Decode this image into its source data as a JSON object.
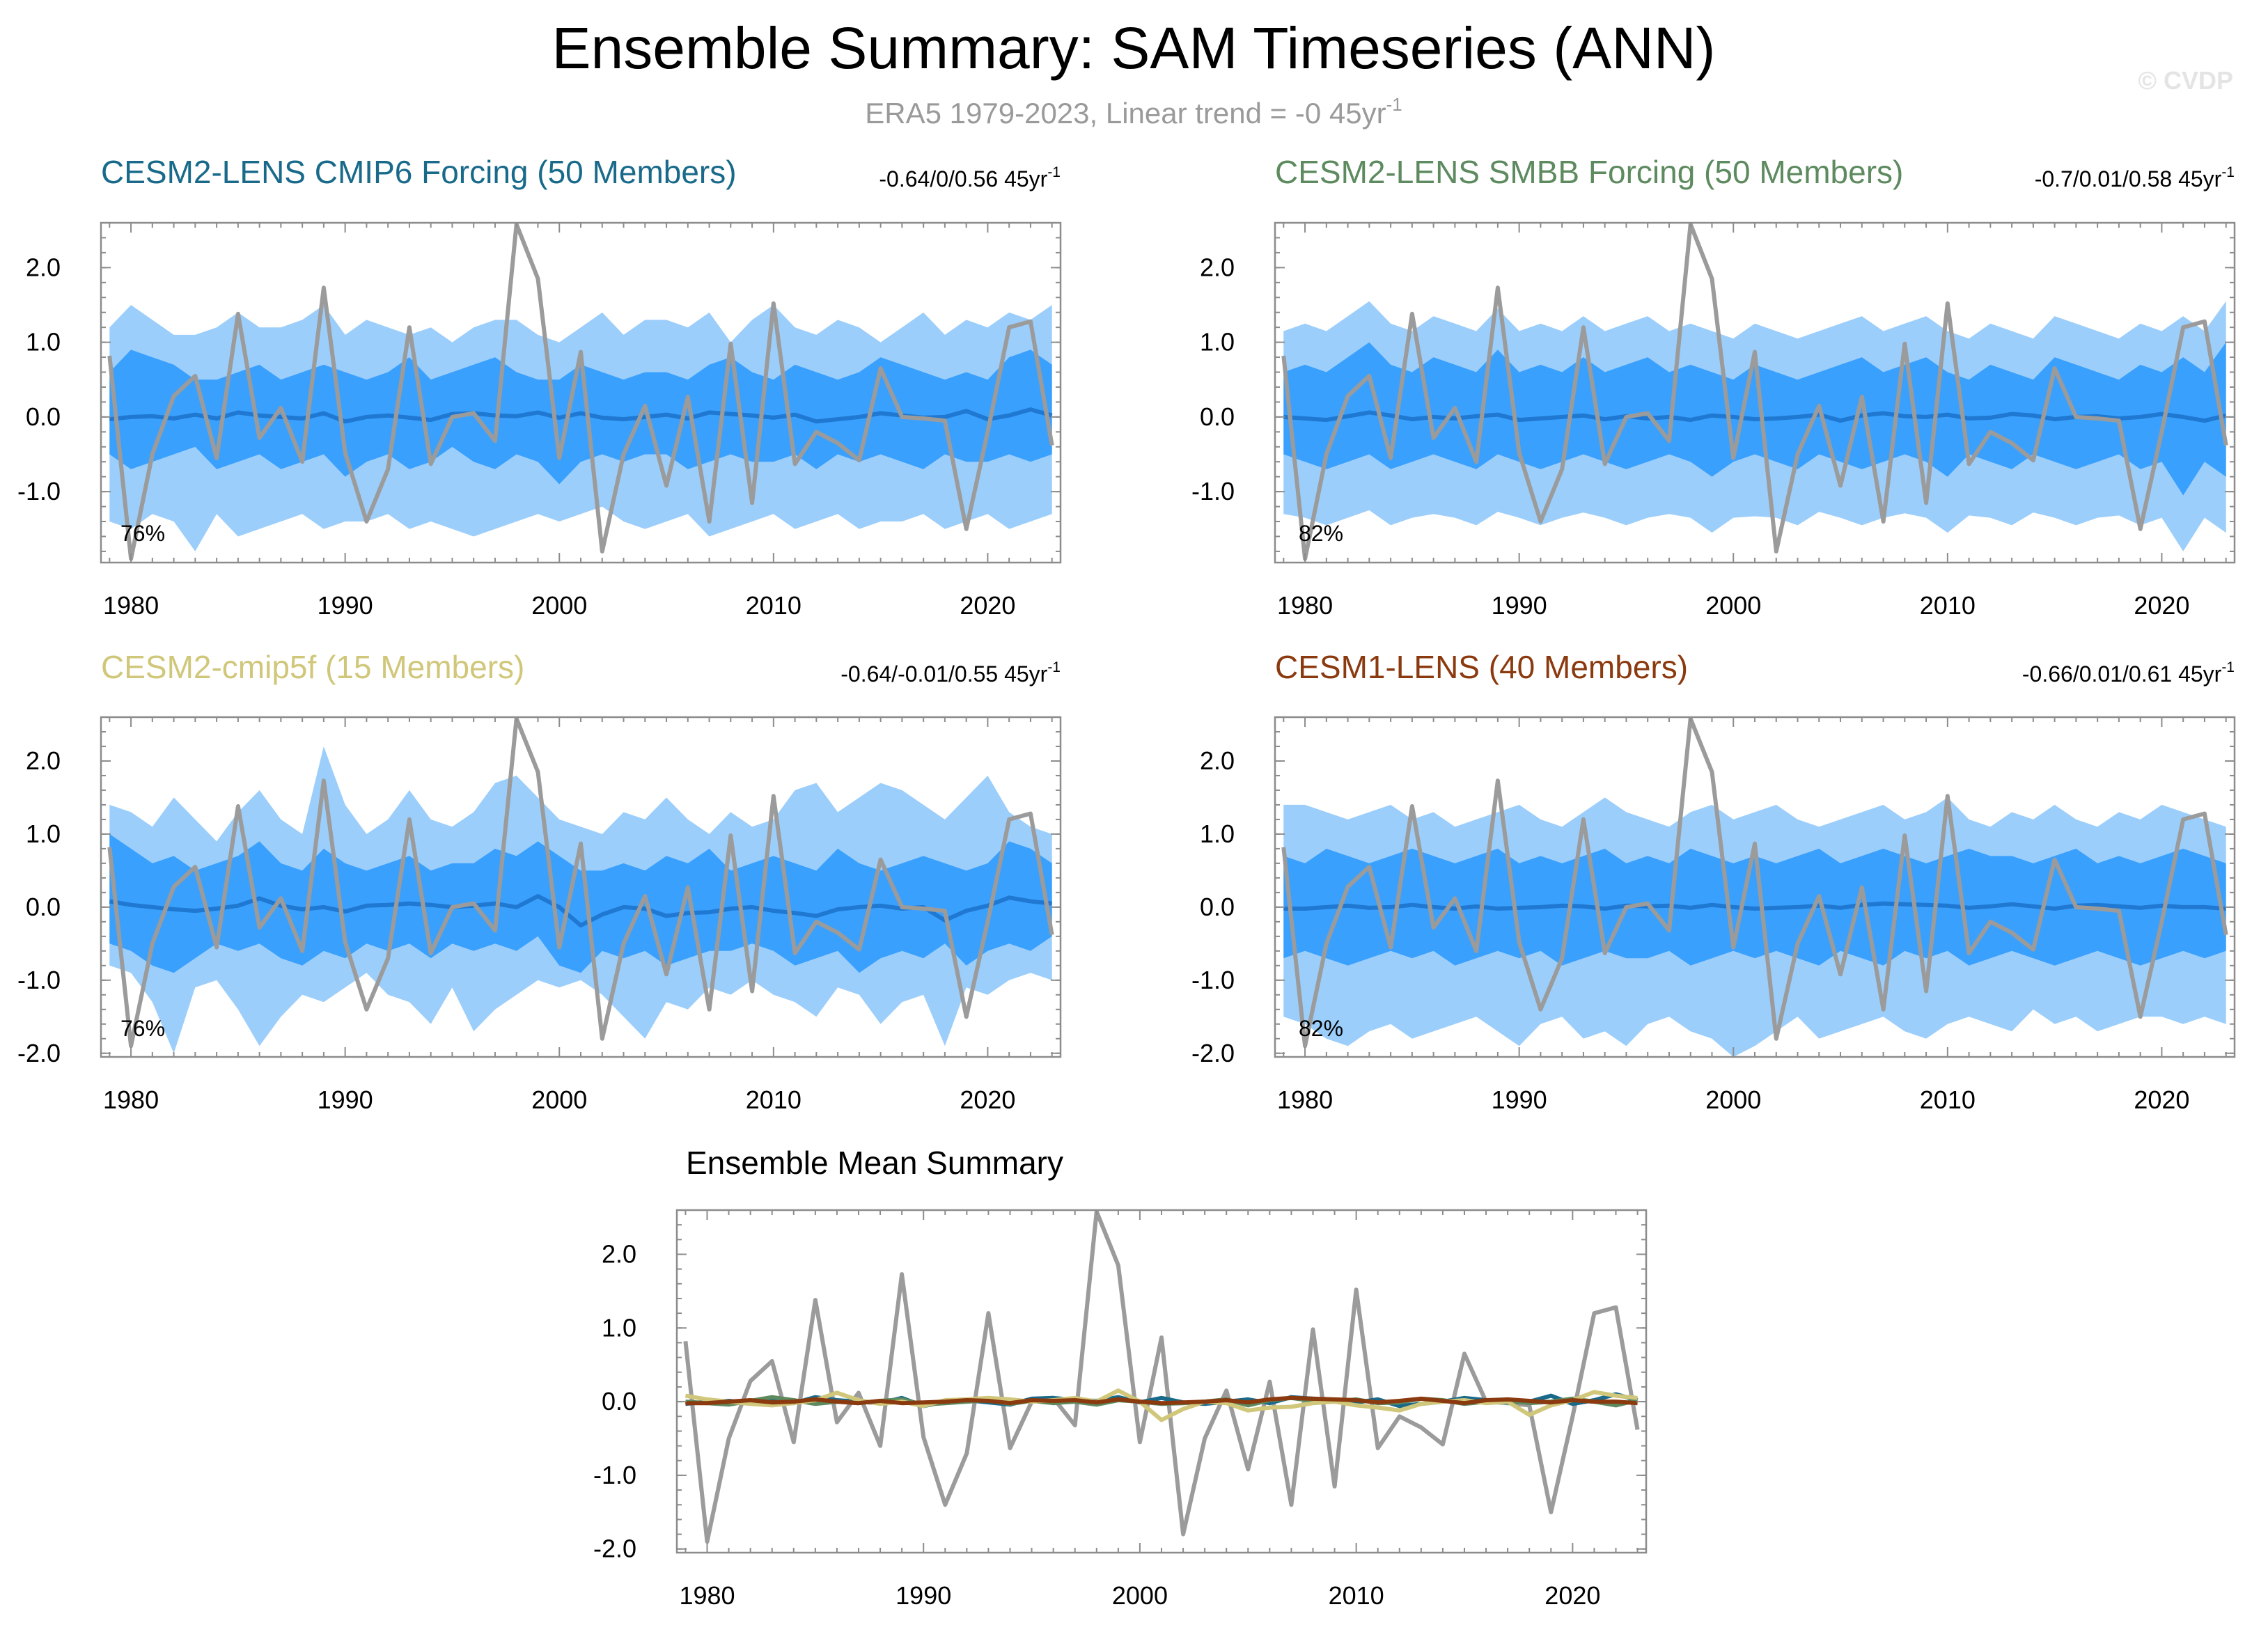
{
  "title": "Ensemble Summary: SAM Timeseries (ANN)",
  "subtitle_text": "ERA5 1979-2023, Linear trend = -0 45yr",
  "subtitle_sup": "-1",
  "watermark": "© CVDP",
  "colors": {
    "obs": "#9b9b9b",
    "outer_band": "#9ccefb",
    "inner_band": "#3aa0fd",
    "ens_mean": "#1f78d1"
  },
  "chart_data": [
    {
      "id": "p1",
      "type": "area",
      "title": "CESM2-LENS CMIP6 Forcing (50 Members)",
      "title_color": "#196a8a",
      "stats_text": "-0.64/0/0.56 45yr",
      "stats_sup": "-1",
      "pct_label": "76%",
      "xlim": [
        1978.6,
        2023.4
      ],
      "ylim": [
        -1.95,
        2.6
      ],
      "xticks": [
        1980,
        1990,
        2000,
        2010,
        2020
      ],
      "yticks": [
        2.0,
        1.0,
        0.0,
        -1.0
      ],
      "ytick_labels": [
        "2.0",
        "1.0",
        "0.0",
        "-1.0"
      ],
      "ensemble_mean": [
        -0.03,
        0.0,
        0.01,
        -0.02,
        0.03,
        -0.02,
        0.06,
        0.02,
        0.0,
        -0.02,
        0.05,
        -0.06,
        0.0,
        0.02,
        -0.01,
        -0.04,
        0.04,
        0.05,
        0.02,
        0.01,
        0.06,
        -0.01,
        0.05,
        -0.01,
        -0.03,
        0.0,
        0.03,
        -0.02,
        0.06,
        0.04,
        0.02,
        -0.01,
        0.03,
        -0.06,
        -0.03,
        0.0,
        0.05,
        0.02,
        -0.01,
        0.0,
        0.08,
        -0.03,
        0.02,
        0.1,
        0.02
      ],
      "inner_upper": [
        0.6,
        0.9,
        0.8,
        0.7,
        0.5,
        0.5,
        0.6,
        0.7,
        0.5,
        0.6,
        0.7,
        0.6,
        0.5,
        0.6,
        0.8,
        0.5,
        0.6,
        0.7,
        0.8,
        0.6,
        0.5,
        0.5,
        0.7,
        0.6,
        0.5,
        0.6,
        0.6,
        0.5,
        0.7,
        0.8,
        0.6,
        0.5,
        0.7,
        0.6,
        0.5,
        0.6,
        0.8,
        0.7,
        0.6,
        0.5,
        0.6,
        0.5,
        0.8,
        0.9,
        0.7
      ],
      "inner_lower": [
        -0.5,
        -0.7,
        -0.6,
        -0.5,
        -0.4,
        -0.7,
        -0.6,
        -0.5,
        -0.7,
        -0.6,
        -0.5,
        -0.8,
        -0.6,
        -0.5,
        -0.7,
        -0.6,
        -0.4,
        -0.6,
        -0.7,
        -0.5,
        -0.6,
        -0.9,
        -0.6,
        -0.5,
        -0.6,
        -0.5,
        -0.5,
        -0.7,
        -0.6,
        -0.5,
        -0.6,
        -0.6,
        -0.5,
        -0.7,
        -0.5,
        -0.6,
        -0.5,
        -0.6,
        -0.7,
        -0.5,
        -0.6,
        -0.6,
        -0.5,
        -0.6,
        -0.5
      ],
      "outer_upper": [
        1.2,
        1.5,
        1.3,
        1.1,
        1.1,
        1.2,
        1.4,
        1.2,
        1.2,
        1.3,
        1.5,
        1.1,
        1.3,
        1.2,
        1.1,
        1.2,
        1.0,
        1.2,
        1.3,
        1.3,
        1.1,
        1.0,
        1.2,
        1.4,
        1.1,
        1.3,
        1.3,
        1.2,
        1.4,
        1.0,
        1.3,
        1.5,
        1.2,
        1.1,
        1.3,
        1.2,
        1.0,
        1.2,
        1.4,
        1.1,
        1.3,
        1.2,
        1.4,
        1.3,
        1.5
      ],
      "outer_lower": [
        -1.4,
        -1.5,
        -1.3,
        -1.4,
        -1.8,
        -1.3,
        -1.6,
        -1.5,
        -1.4,
        -1.3,
        -1.5,
        -1.4,
        -1.4,
        -1.3,
        -1.5,
        -1.4,
        -1.5,
        -1.6,
        -1.5,
        -1.4,
        -1.3,
        -1.4,
        -1.3,
        -1.2,
        -1.4,
        -1.5,
        -1.4,
        -1.3,
        -1.6,
        -1.5,
        -1.4,
        -1.3,
        -1.5,
        -1.4,
        -1.3,
        -1.5,
        -1.4,
        -1.4,
        -1.3,
        -1.5,
        -1.4,
        -1.3,
        -1.5,
        -1.4,
        -1.3
      ]
    },
    {
      "id": "p2",
      "type": "area",
      "title": "CESM2-LENS SMBB Forcing (50 Members)",
      "title_color": "#5d8a5f",
      "stats_text": "-0.7/0.01/0.58 45yr",
      "stats_sup": "-1",
      "pct_label": "82%",
      "xlim": [
        1978.6,
        2023.4
      ],
      "ylim": [
        -1.95,
        2.6
      ],
      "xticks": [
        1980,
        1990,
        2000,
        2010,
        2020
      ],
      "yticks": [
        2.0,
        1.0,
        0.0,
        -1.0
      ],
      "ytick_labels": [
        "2.0",
        "1.0",
        "0.0",
        "-1.0"
      ],
      "ensemble_mean": [
        0.0,
        -0.02,
        -0.04,
        0.01,
        0.06,
        0.02,
        -0.03,
        0.0,
        -0.02,
        0.01,
        0.03,
        -0.04,
        -0.02,
        0.0,
        0.02,
        -0.03,
        0.01,
        -0.02,
        0.0,
        -0.04,
        0.02,
        0.0,
        -0.03,
        -0.02,
        0.0,
        0.03,
        -0.05,
        0.02,
        0.05,
        0.01,
        0.0,
        0.03,
        -0.02,
        -0.01,
        0.04,
        0.02,
        -0.03,
        0.0,
        0.01,
        -0.02,
        0.0,
        0.04,
        0.0,
        -0.05,
        0.02
      ],
      "inner_upper": [
        0.6,
        0.7,
        0.6,
        0.8,
        1.0,
        0.7,
        0.6,
        0.8,
        0.7,
        0.6,
        0.9,
        0.6,
        0.7,
        0.6,
        0.8,
        0.6,
        0.7,
        0.8,
        0.6,
        0.7,
        0.6,
        0.5,
        0.7,
        0.6,
        0.5,
        0.6,
        0.7,
        0.8,
        0.6,
        0.7,
        0.8,
        0.6,
        0.5,
        0.7,
        0.6,
        0.5,
        0.8,
        0.7,
        0.6,
        0.5,
        0.7,
        0.6,
        0.8,
        0.6,
        1.0
      ],
      "inner_lower": [
        -0.5,
        -0.6,
        -0.7,
        -0.6,
        -0.5,
        -0.7,
        -0.6,
        -0.5,
        -0.6,
        -0.7,
        -0.5,
        -0.6,
        -0.7,
        -0.6,
        -0.5,
        -0.6,
        -0.7,
        -0.6,
        -0.5,
        -0.6,
        -0.8,
        -0.6,
        -0.5,
        -0.6,
        -0.7,
        -0.5,
        -0.6,
        -0.7,
        -0.6,
        -0.5,
        -0.6,
        -0.8,
        -0.5,
        -0.6,
        -0.7,
        -0.5,
        -0.6,
        -0.7,
        -0.6,
        -0.5,
        -0.7,
        -0.6,
        -1.05,
        -0.6,
        -0.8
      ]
    },
    {
      "id": "p3",
      "type": "area",
      "title": "CESM2-cmip5f (15 Members)",
      "title_color": "#d0c77a",
      "stats_text": "-0.64/-0.01/0.55 45yr",
      "stats_sup": "-1",
      "pct_label": "76%",
      "xlim": [
        1978.6,
        2023.4
      ],
      "ylim": [
        -2.05,
        2.6
      ],
      "xticks": [
        1980,
        1990,
        2000,
        2010,
        2020
      ],
      "yticks": [
        2.0,
        1.0,
        0.0,
        -1.0,
        -2.0
      ],
      "ytick_labels": [
        "2.0",
        "1.0",
        "0.0",
        "-1.0",
        "-2.0"
      ],
      "ensemble_mean": [
        0.08,
        0.03,
        0.0,
        -0.03,
        -0.05,
        -0.02,
        0.02,
        0.12,
        0.02,
        -0.03,
        0.0,
        -0.06,
        0.02,
        0.03,
        0.05,
        0.03,
        0.0,
        0.02,
        0.05,
        0.0,
        0.15,
        0.0,
        -0.25,
        -0.1,
        0.0,
        -0.02,
        -0.12,
        -0.08,
        -0.07,
        -0.02,
        0.0,
        -0.05,
        -0.08,
        -0.12,
        -0.03,
        0.0,
        0.02,
        -0.02,
        0.0,
        -0.18,
        -0.05,
        0.02,
        0.13,
        0.08,
        0.05
      ],
      "inner_upper": [
        1.0,
        0.8,
        0.6,
        0.7,
        0.5,
        0.6,
        0.7,
        0.9,
        0.6,
        0.5,
        0.8,
        0.6,
        0.5,
        0.6,
        0.7,
        0.5,
        0.6,
        0.6,
        0.8,
        0.7,
        0.9,
        0.7,
        0.5,
        0.5,
        0.6,
        0.5,
        0.7,
        0.6,
        0.8,
        0.5,
        0.6,
        0.7,
        0.6,
        0.5,
        0.8,
        0.6,
        0.5,
        0.6,
        0.7,
        0.6,
        0.5,
        0.6,
        0.9,
        0.8,
        0.6
      ],
      "inner_lower": [
        -0.5,
        -0.6,
        -0.8,
        -0.9,
        -0.7,
        -0.5,
        -0.6,
        -0.5,
        -0.7,
        -0.8,
        -0.6,
        -0.7,
        -0.5,
        -0.6,
        -0.5,
        -0.7,
        -0.5,
        -0.6,
        -0.5,
        -0.6,
        -0.4,
        -0.8,
        -0.9,
        -0.6,
        -0.7,
        -0.6,
        -0.8,
        -0.7,
        -0.6,
        -0.6,
        -0.5,
        -0.6,
        -0.8,
        -0.7,
        -0.6,
        -0.9,
        -0.7,
        -0.6,
        -0.7,
        -0.5,
        -0.8,
        -0.6,
        -0.5,
        -0.6,
        -0.4
      ],
      "outer_upper": [
        1.4,
        1.3,
        1.1,
        1.5,
        1.2,
        0.9,
        1.3,
        1.6,
        1.2,
        1.0,
        2.2,
        1.4,
        1.0,
        1.2,
        1.6,
        1.2,
        1.1,
        1.3,
        1.7,
        1.8,
        1.5,
        1.2,
        1.1,
        1.0,
        1.3,
        1.2,
        1.5,
        1.2,
        1.0,
        1.3,
        1.1,
        1.2,
        1.6,
        1.7,
        1.3,
        1.5,
        1.7,
        1.6,
        1.4,
        1.2,
        1.5,
        1.8,
        1.3,
        1.1,
        1.0
      ],
      "outer_lower": [
        -0.8,
        -0.9,
        -1.3,
        -2.0,
        -1.1,
        -1.0,
        -1.4,
        -1.9,
        -1.5,
        -1.2,
        -1.3,
        -1.1,
        -0.9,
        -1.2,
        -1.3,
        -1.6,
        -1.1,
        -1.7,
        -1.4,
        -1.2,
        -1.0,
        -1.1,
        -1.0,
        -1.2,
        -1.5,
        -1.8,
        -1.3,
        -1.4,
        -1.1,
        -1.2,
        -1.0,
        -1.2,
        -1.3,
        -1.5,
        -1.1,
        -1.2,
        -1.6,
        -1.3,
        -1.2,
        -1.9,
        -1.1,
        -1.2,
        -1.0,
        -0.9,
        -1.0
      ]
    },
    {
      "id": "p4",
      "type": "area",
      "title": "CESM1-LENS (40 Members)",
      "title_color": "#8b3a0f",
      "stats_text": "-0.66/0.01/0.61 45yr",
      "stats_sup": "-1",
      "pct_label": "82%",
      "xlim": [
        1978.6,
        2023.4
      ],
      "ylim": [
        -2.05,
        2.6
      ],
      "xticks": [
        1980,
        1990,
        2000,
        2010,
        2020
      ],
      "yticks": [
        2.0,
        1.0,
        0.0,
        -1.0,
        -2.0
      ],
      "ytick_labels": [
        "2.0",
        "1.0",
        "0.0",
        "-1.0",
        "-2.0"
      ],
      "ensemble_mean": [
        -0.02,
        -0.02,
        0.0,
        0.02,
        -0.01,
        0.0,
        0.03,
        0.0,
        -0.02,
        0.01,
        -0.02,
        -0.01,
        0.0,
        0.02,
        0.01,
        -0.02,
        0.02,
        0.01,
        0.02,
        -0.01,
        0.03,
        0.0,
        -0.02,
        -0.01,
        0.0,
        0.02,
        -0.01,
        0.03,
        0.05,
        0.04,
        0.03,
        0.02,
        -0.01,
        0.01,
        0.04,
        0.01,
        -0.02,
        0.02,
        0.03,
        0.01,
        -0.01,
        0.02,
        0.0,
        0.0,
        -0.02
      ],
      "inner_upper": [
        0.7,
        0.6,
        0.8,
        0.7,
        0.6,
        0.7,
        0.8,
        0.7,
        0.6,
        0.7,
        0.8,
        0.6,
        0.7,
        0.6,
        0.7,
        0.8,
        0.6,
        0.7,
        0.6,
        0.8,
        0.7,
        0.6,
        0.7,
        0.6,
        0.7,
        0.8,
        0.6,
        0.7,
        0.8,
        0.7,
        0.6,
        0.7,
        0.8,
        0.7,
        0.7,
        0.6,
        0.7,
        0.8,
        0.6,
        0.7,
        0.6,
        0.7,
        0.8,
        0.7,
        0.6
      ],
      "inner_lower": [
        -0.7,
        -0.6,
        -0.7,
        -0.8,
        -0.7,
        -0.6,
        -0.7,
        -0.6,
        -0.8,
        -0.7,
        -0.6,
        -0.7,
        -0.6,
        -0.8,
        -0.7,
        -0.6,
        -0.7,
        -0.7,
        -0.6,
        -0.8,
        -0.7,
        -0.6,
        -0.7,
        -0.6,
        -0.7,
        -0.8,
        -0.6,
        -0.7,
        -0.8,
        -0.6,
        -0.7,
        -0.6,
        -0.8,
        -0.7,
        -0.6,
        -0.7,
        -0.8,
        -0.7,
        -0.6,
        -0.7,
        -0.8,
        -0.7,
        -0.6,
        -0.7,
        -0.6
      ],
      "outer_upper": [
        1.4,
        1.4,
        1.3,
        1.2,
        1.3,
        1.4,
        1.2,
        1.3,
        1.1,
        1.2,
        1.3,
        1.4,
        1.2,
        1.1,
        1.3,
        1.5,
        1.3,
        1.2,
        1.1,
        1.3,
        1.4,
        1.2,
        1.3,
        1.4,
        1.2,
        1.1,
        1.2,
        1.3,
        1.4,
        1.2,
        1.3,
        1.5,
        1.2,
        1.1,
        1.3,
        1.2,
        1.4,
        1.2,
        1.1,
        1.3,
        1.2,
        1.4,
        1.3,
        1.2,
        1.1
      ],
      "outer_lower": [
        -1.5,
        -1.6,
        -1.8,
        -1.9,
        -1.7,
        -1.6,
        -1.8,
        -1.7,
        -1.6,
        -1.5,
        -1.7,
        -1.9,
        -1.6,
        -1.5,
        -1.8,
        -1.7,
        -1.9,
        -1.6,
        -1.5,
        -1.7,
        -1.8,
        -2.05,
        -1.9,
        -1.7,
        -1.5,
        -1.8,
        -1.7,
        -1.6,
        -1.5,
        -1.7,
        -1.8,
        -1.6,
        -1.5,
        -1.6,
        -1.7,
        -1.4,
        -1.6,
        -1.5,
        -1.7,
        -1.6,
        -1.5,
        -1.5,
        -1.6,
        -1.5,
        -1.6
      ]
    },
    {
      "id": "p5",
      "type": "line",
      "title": "Ensemble Mean Summary",
      "title_color": "#000000",
      "xlim": [
        1978.6,
        2023.4
      ],
      "ylim": [
        -2.05,
        2.6
      ],
      "xticks": [
        1980,
        1990,
        2000,
        2010,
        2020
      ],
      "yticks": [
        2.0,
        1.0,
        0.0,
        -1.0,
        -2.0
      ],
      "ytick_labels": [
        "2.0",
        "1.0",
        "0.0",
        "-1.0",
        "-2.0"
      ],
      "series": [
        {
          "name": "CESM2-LENS CMIP6 Forcing",
          "color": "#196a8a",
          "ref": "p1"
        },
        {
          "name": "CESM2-LENS SMBB Forcing",
          "color": "#5d8a5f",
          "ref": "p2"
        },
        {
          "name": "CESM2-cmip5f",
          "color": "#d0c77a",
          "ref": "p3"
        },
        {
          "name": "CESM1-LENS",
          "color": "#8b3a0f",
          "ref": "p4"
        }
      ]
    }
  ],
  "observations": {
    "name": "ERA5",
    "x": [
      1979,
      1980,
      1981,
      1982,
      1983,
      1984,
      1985,
      1986,
      1987,
      1988,
      1989,
      1990,
      1991,
      1992,
      1993,
      1994,
      1995,
      1996,
      1997,
      1998,
      1999,
      2000,
      2001,
      2002,
      2003,
      2004,
      2005,
      2006,
      2007,
      2008,
      2009,
      2010,
      2011,
      2012,
      2013,
      2014,
      2015,
      2016,
      2017,
      2018,
      2019,
      2020,
      2021,
      2022,
      2023
    ],
    "values": [
      0.82,
      -1.9,
      -0.5,
      0.28,
      0.55,
      -0.55,
      1.38,
      -0.28,
      0.12,
      -0.6,
      1.73,
      -0.48,
      -1.4,
      -0.7,
      1.2,
      -0.63,
      0.0,
      0.05,
      -0.32,
      2.58,
      1.85,
      -0.55,
      0.87,
      -1.8,
      -0.5,
      0.15,
      -0.92,
      0.27,
      -1.4,
      0.98,
      -1.15,
      1.52,
      -0.63,
      -0.2,
      -0.35,
      -0.58,
      0.65,
      0.0,
      -0.02,
      -0.05,
      -1.5,
      -0.2,
      1.2,
      1.28,
      -0.38
    ]
  }
}
